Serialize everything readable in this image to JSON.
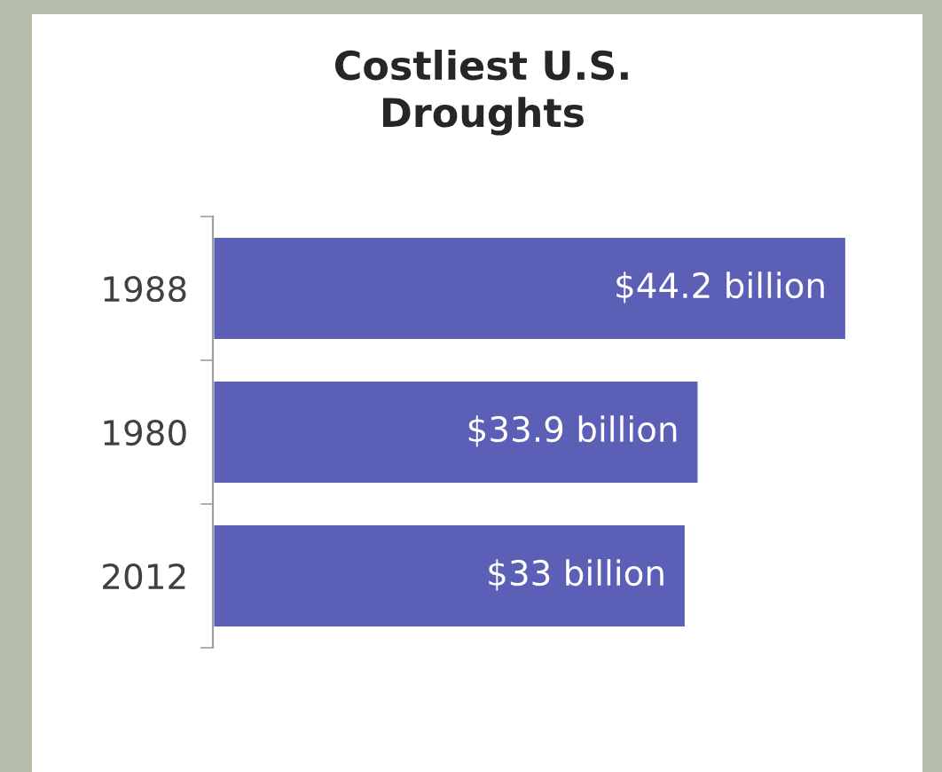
{
  "chart_data": {
    "type": "bar",
    "orientation": "horizontal",
    "title": "Costliest U.S.\nDroughts",
    "categories": [
      "1988",
      "1980",
      "2012"
    ],
    "values": [
      44.2,
      33.9,
      33
    ],
    "value_labels": [
      "$44.2 billion",
      "$33.9 billion",
      "$33 billion"
    ],
    "color": "#5b5fb6",
    "grid": false,
    "legend": false
  }
}
